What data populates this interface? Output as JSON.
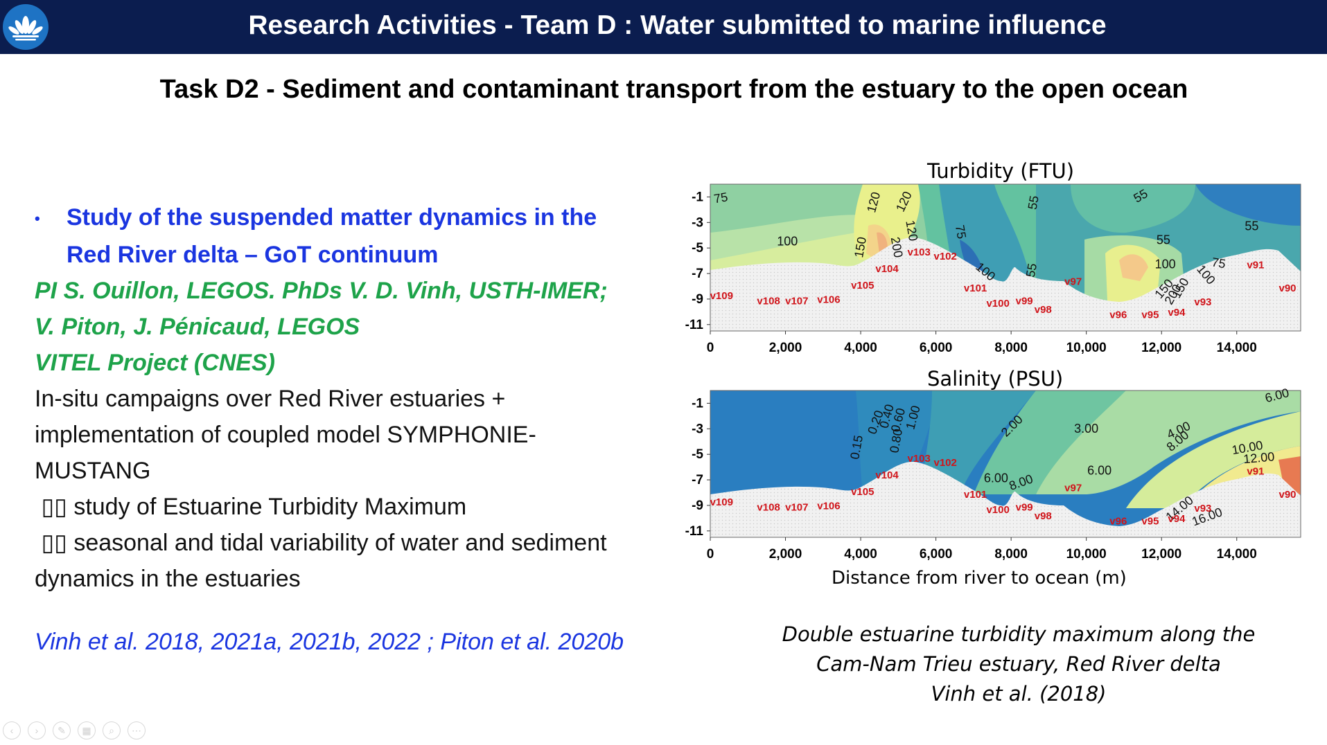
{
  "header": {
    "title": "Research Activities - Team D : Water submitted to marine influence",
    "logo_icon": "lotus-logo-icon"
  },
  "task": {
    "title": "Task D2 - Sediment and contaminant transport from the estuary to the open ocean"
  },
  "body": {
    "bullet_line1": "Study of the suspended matter dynamics in the",
    "bullet_line2": "Red River delta – GoT continuum",
    "pi_line1": "PI S. Ouillon, LEGOS. PhDs V. D. Vinh, USTH-IMER;",
    "pi_line2": "V. Piton, J. Pénicaud, LEGOS",
    "project": "VITEL Project (CNES)",
    "para1": "In-situ campaigns over Red River estuaries +",
    "para2": "implementation of coupled model SYMPHONIE-",
    "para3": "MUSTANG",
    "item1_prefix": "",
    "item1": "study of Estuarine Turbidity Maximum",
    "item2_prefix": "",
    "item2": "seasonal and tidal variability of water and sediment",
    "item2_cont": "dynamics in the estuaries",
    "refs": "Vinh et al. 2018, 2021a, 2021b, 2022 ; Piton et al. 2020b"
  },
  "figure": {
    "xlabel": "Distance from river to ocean (m) ",
    "caption_line1": "Double estuarine turbidity maximum along the",
    "caption_line2": "Cam-Nam Trieu estuary, Red River delta",
    "caption_line3": "Vinh et al. (2018)"
  },
  "chart_data": [
    {
      "type": "heatmap",
      "title": "Turbidity (FTU)",
      "xlim": [
        0,
        15700
      ],
      "ylim": [
        -11.5,
        0
      ],
      "xticks": [
        "0",
        "2,000",
        "4,000",
        "6,000",
        "8,000",
        "10,000",
        "12,000",
        "14,000"
      ],
      "yticks": [
        "-1",
        "-3",
        "-5",
        "-7",
        "-9",
        "-11"
      ],
      "contour_labels": [
        "75",
        "100",
        "120",
        "150",
        "200",
        "120",
        "120",
        "75",
        "55",
        "100",
        "55",
        "55",
        "55",
        "100",
        "150",
        "200",
        "150",
        "100",
        "75",
        "55"
      ],
      "stations": [
        "v109",
        "v108",
        "v107",
        "v106",
        "v105",
        "v104",
        "v103",
        "v102",
        "v101",
        "v100",
        "v99",
        "v98",
        "v97",
        "v96",
        "v95",
        "v94",
        "v93",
        "v91",
        "v90"
      ]
    },
    {
      "type": "heatmap",
      "title": "Salinity (PSU)",
      "xlim": [
        0,
        15700
      ],
      "ylim": [
        -11.5,
        0
      ],
      "xticks": [
        "0",
        "2,000",
        "4,000",
        "6,000",
        "8,000",
        "10,000",
        "12,000",
        "14,000"
      ],
      "yticks": [
        "-1",
        "-3",
        "-5",
        "-7",
        "-9",
        "-11"
      ],
      "contour_labels": [
        "0.15",
        "0.20",
        "0.40",
        "0.60",
        "0.80",
        "1.00",
        "2.00",
        "3.00",
        "4.00",
        "6.00",
        "6.00",
        "8.00",
        "6.00",
        "8.00",
        "10.00",
        "12.00",
        "14.00",
        "16.00"
      ],
      "stations": [
        "v109",
        "v108",
        "v107",
        "v106",
        "v105",
        "v104",
        "v103",
        "v102",
        "v101",
        "v100",
        "v99",
        "v98",
        "v97",
        "v96",
        "v95",
        "v94",
        "v93",
        "v91",
        "v90"
      ]
    }
  ]
}
